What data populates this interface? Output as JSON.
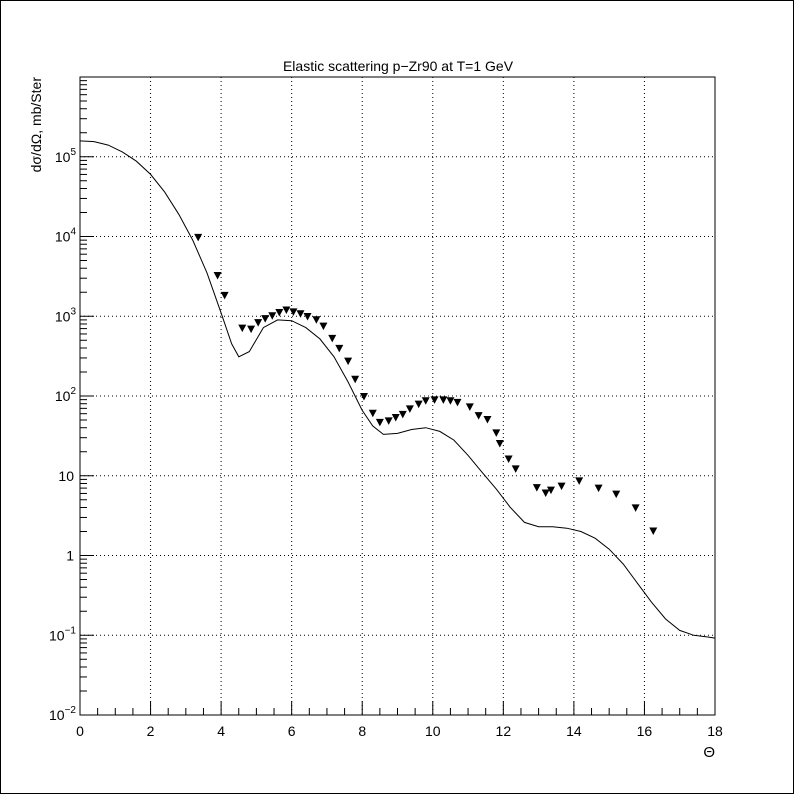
{
  "chart_data": {
    "type": "line",
    "title": "Elastic scattering p−Zr90 at T=1 GeV",
    "xlabel": "Θ",
    "ylabel": "dσ/dΩ, mb/Ster",
    "xlim": [
      0,
      18
    ],
    "ylim": [
      0.01,
      1000000
    ],
    "yscale": "log",
    "grid": true,
    "x_ticks": [
      "0",
      "2",
      "4",
      "6",
      "8",
      "10",
      "12",
      "14",
      "16",
      "18"
    ],
    "y_ticks": [
      {
        "base": "10",
        "exp": "−2"
      },
      {
        "base": "10",
        "exp": "−1"
      },
      {
        "base": "1",
        "exp": ""
      },
      {
        "base": "10",
        "exp": ""
      },
      {
        "base": "10",
        "exp": "2"
      },
      {
        "base": "10",
        "exp": "3"
      },
      {
        "base": "10",
        "exp": "4"
      },
      {
        "base": "10",
        "exp": "5"
      }
    ],
    "series": [
      {
        "style": "line",
        "color": "#000000",
        "x": [
          0,
          0.4,
          0.8,
          1.2,
          1.6,
          2.0,
          2.4,
          2.8,
          3.2,
          3.6,
          4.0,
          4.3,
          4.5,
          4.8,
          5.2,
          5.6,
          6.0,
          6.4,
          6.8,
          7.2,
          7.6,
          8.0,
          8.3,
          8.6,
          9.0,
          9.4,
          9.8,
          10.2,
          10.6,
          11.0,
          11.4,
          11.8,
          12.2,
          12.6,
          13.0,
          13.4,
          13.8,
          14.2,
          14.6,
          15.0,
          15.4,
          15.8,
          16.2,
          16.6,
          17.0,
          17.4,
          17.8,
          18.0
        ],
        "y": [
          158000,
          155000,
          140000,
          115000,
          88000,
          60000,
          36000,
          19000,
          8900,
          3500,
          1100,
          450,
          310,
          360,
          720,
          900,
          880,
          720,
          520,
          310,
          150,
          66,
          42,
          33,
          34,
          38,
          40,
          36,
          28,
          18,
          11,
          6.8,
          4.0,
          2.6,
          2.3,
          2.3,
          2.2,
          2.0,
          1.65,
          1.2,
          0.78,
          0.45,
          0.26,
          0.16,
          0.115,
          0.1,
          0.095,
          0.092
        ]
      },
      {
        "style": "scatter",
        "marker": "down-triangle",
        "color": "#000000",
        "x": [
          3.35,
          3.9,
          4.1,
          4.6,
          4.85,
          5.05,
          5.25,
          5.45,
          5.65,
          5.85,
          6.05,
          6.25,
          6.45,
          6.7,
          6.9,
          7.15,
          7.35,
          7.6,
          7.8,
          8.05,
          8.3,
          8.5,
          8.75,
          8.95,
          9.15,
          9.35,
          9.6,
          9.8,
          10.05,
          10.3,
          10.5,
          10.7,
          11.05,
          11.3,
          11.55,
          11.8,
          11.9,
          12.15,
          12.35,
          12.95,
          13.2,
          13.35,
          13.65,
          14.15,
          14.7,
          15.2,
          15.75,
          16.25
        ],
        "y": [
          9600,
          3200,
          1800,
          700,
          680,
          820,
          920,
          1000,
          1100,
          1180,
          1120,
          1060,
          980,
          890,
          740,
          520,
          390,
          270,
          160,
          97,
          60,
          46,
          48,
          53,
          58,
          68,
          78,
          86,
          88,
          88,
          86,
          82,
          72,
          56,
          50,
          34,
          25,
          16,
          12,
          7.0,
          6.0,
          6.5,
          7.3,
          8.5,
          6.9,
          5.8,
          3.9,
          2.0
        ]
      }
    ]
  }
}
